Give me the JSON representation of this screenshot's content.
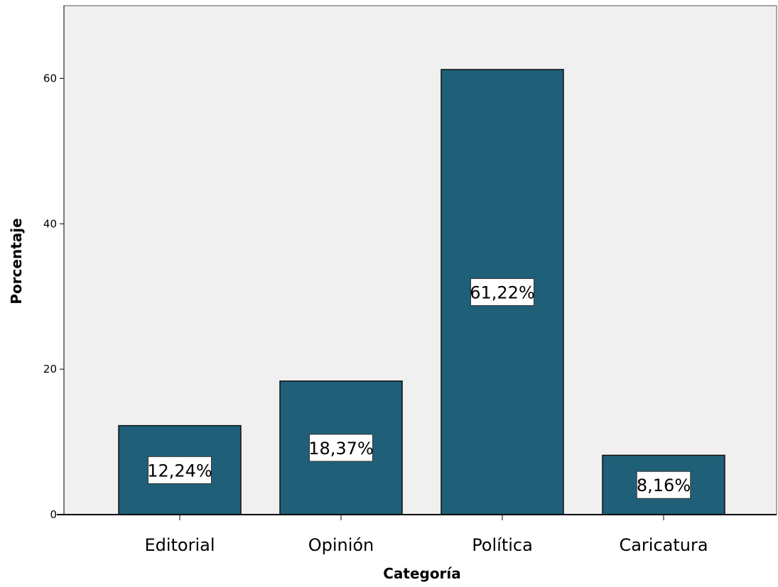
{
  "chart_data": {
    "type": "bar",
    "title": "",
    "xlabel": "Categoría",
    "ylabel": "Porcentaje",
    "categories": [
      "Editorial",
      "Opinión",
      "Política",
      "Caricatura"
    ],
    "values": [
      12.24,
      18.37,
      61.22,
      8.16
    ],
    "data_labels": [
      "12,24%",
      "18,37%",
      "61,22%",
      "8,16%"
    ],
    "ylim": [
      0,
      70
    ],
    "yticks": [
      0,
      20,
      40,
      60
    ],
    "ytick_labels": [
      "0",
      "20",
      "40",
      "60"
    ],
    "grid": false,
    "legend": "none",
    "colors": {
      "bar": "#1f5f78",
      "bar_edge": "#111111",
      "plot_background": "#f0f0f0",
      "label_box": "#ffffff"
    }
  }
}
